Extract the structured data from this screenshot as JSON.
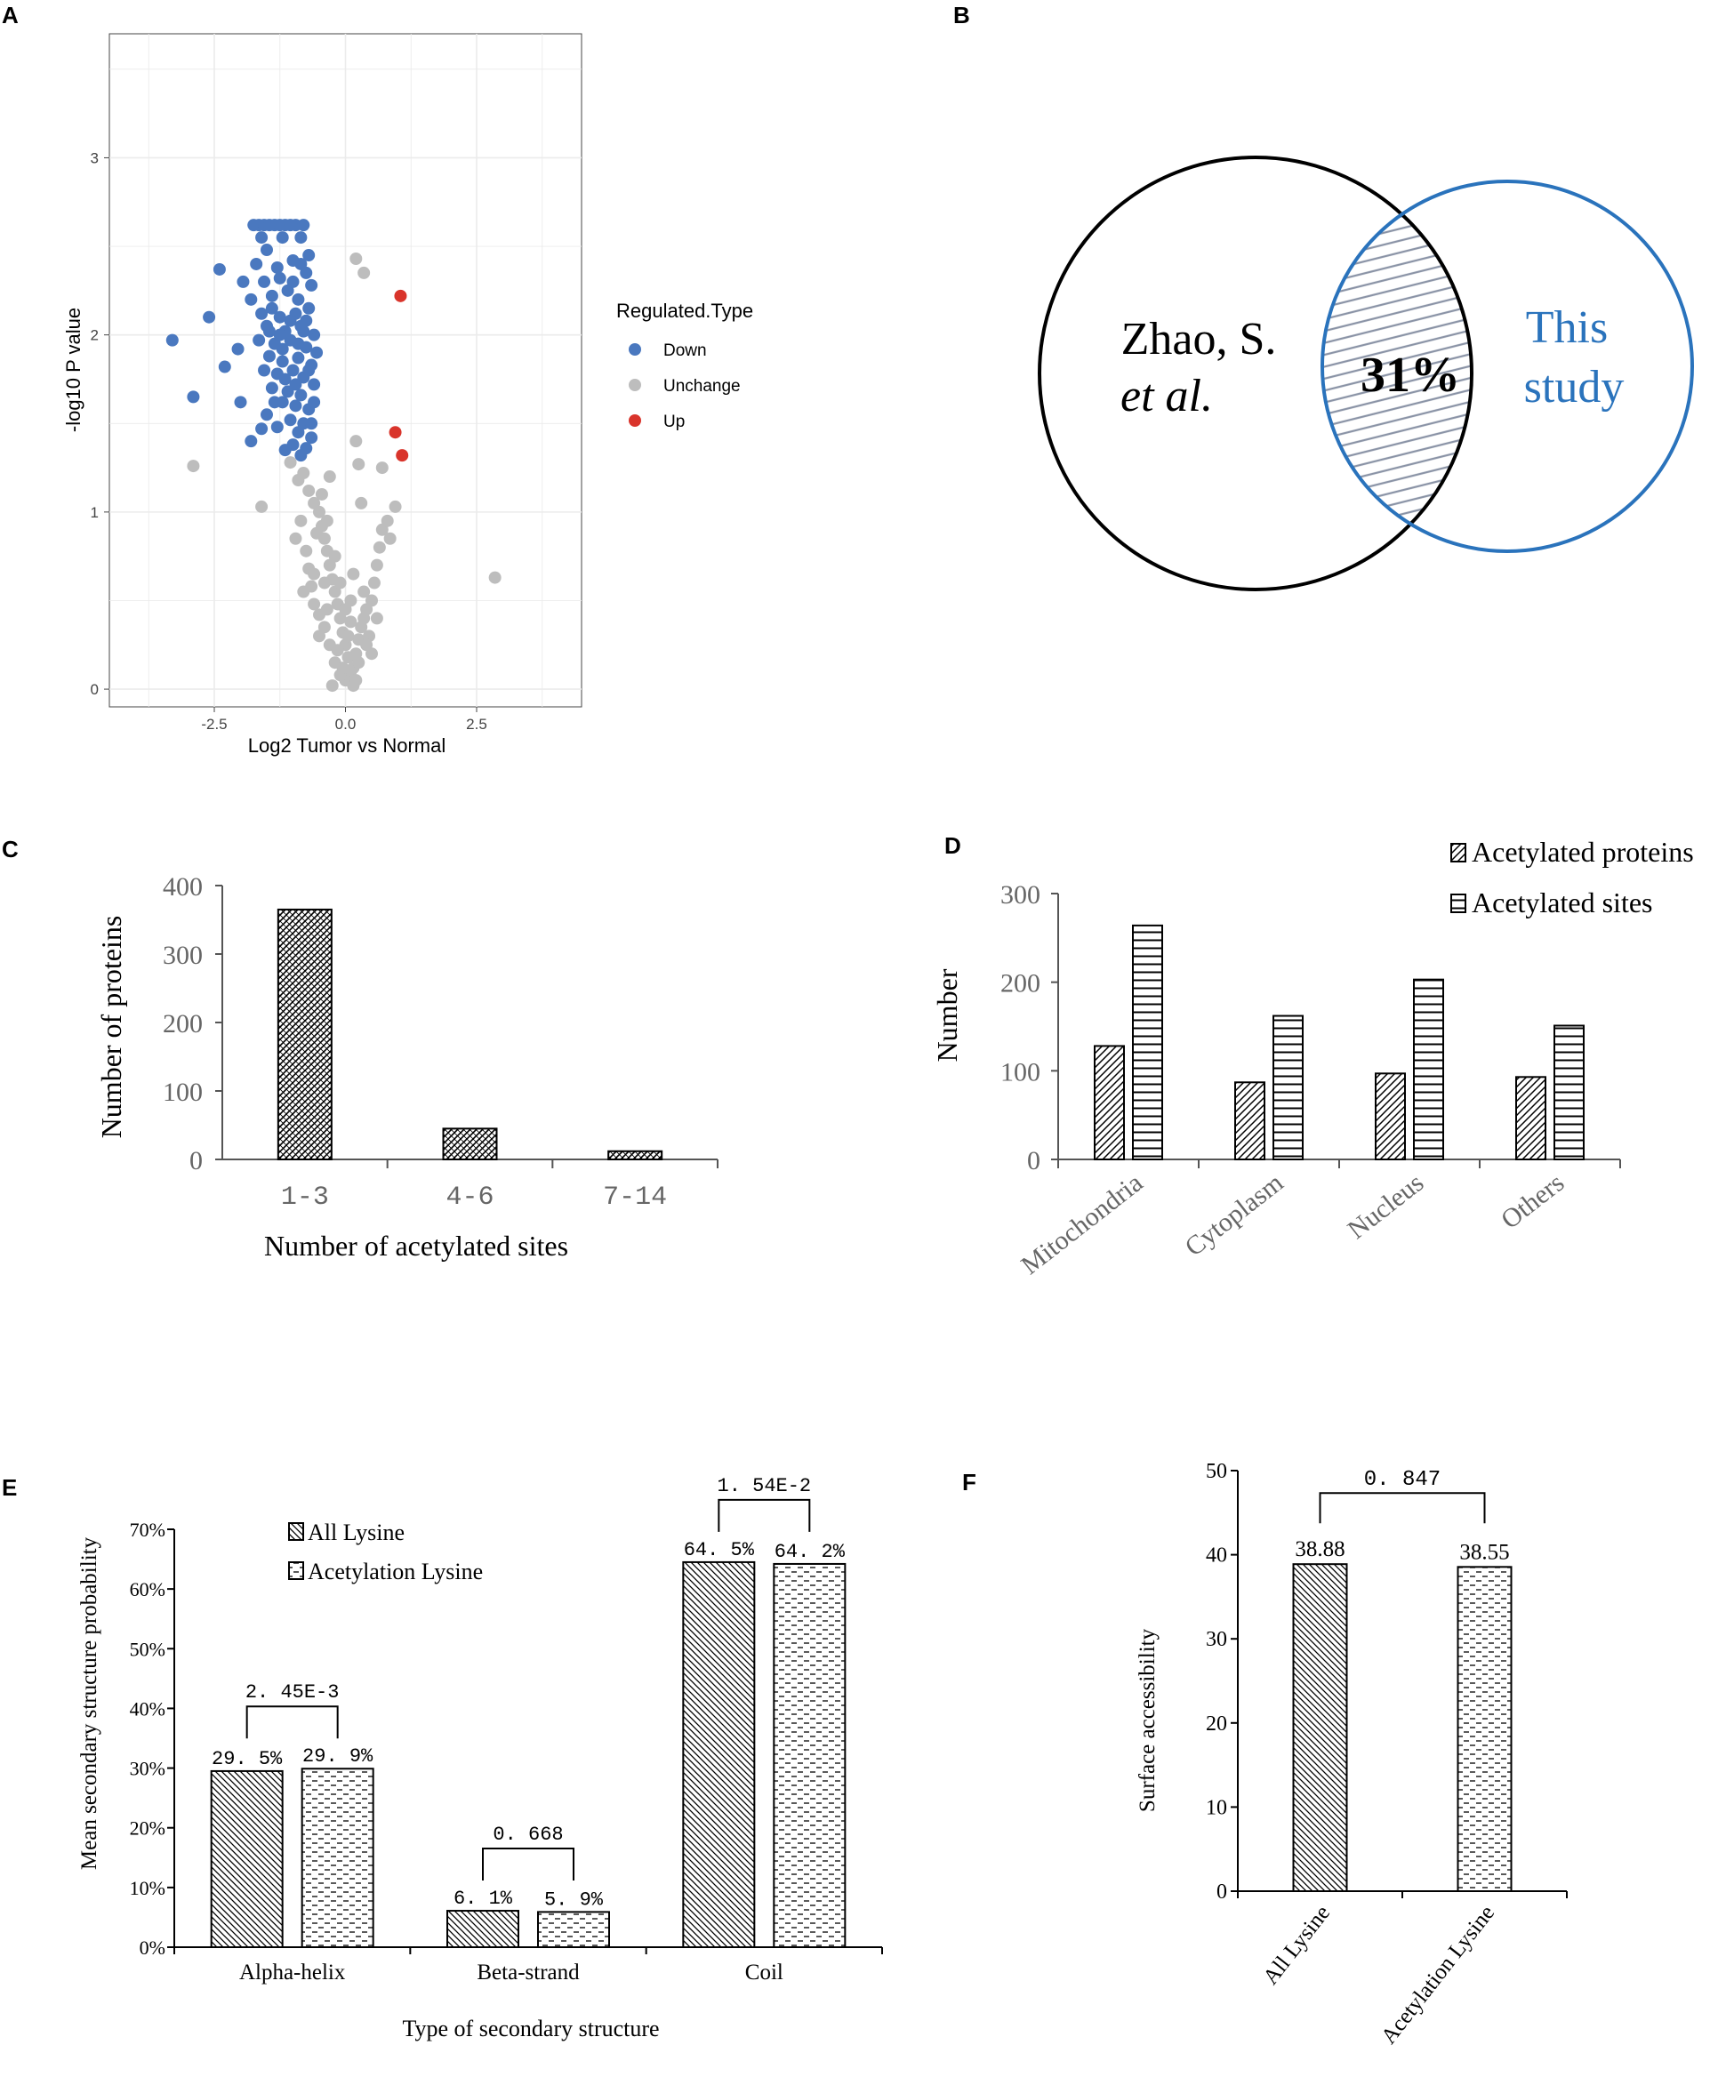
{
  "colors": {
    "down": "#4a78bf",
    "unchange": "#bdbdbd",
    "up": "#d9342b",
    "venn_blue": "#2a73bc",
    "hatch": "#8a93a6",
    "panel_bg": "#ffffff",
    "grid": "#ebebeb"
  },
  "chart_data": [
    {
      "panel": "A",
      "type": "scatter",
      "xlabel": "Log2 Tumor vs Normal",
      "ylabel": "-log10 P value",
      "xlim": [
        -4.5,
        4.5
      ],
      "ylim": [
        -0.1,
        3.7
      ],
      "x_ticks": [
        "-2.5",
        "0.0",
        "2.5"
      ],
      "x_tick_values": [
        -2.5,
        0.0,
        2.5
      ],
      "y_ticks": [
        "0",
        "1",
        "2",
        "3"
      ],
      "y_tick_values": [
        0,
        1,
        2,
        3
      ],
      "legend_title": "Regulated.Type",
      "legend": [
        "Down",
        "Unchange",
        "Up"
      ],
      "series": [
        {
          "name": "Down",
          "points": [
            [
              -3.3,
              1.97
            ],
            [
              -2.9,
              1.65
            ],
            [
              -2.6,
              2.1
            ],
            [
              -2.4,
              2.37
            ],
            [
              -2.3,
              1.82
            ],
            [
              -2.05,
              1.92
            ],
            [
              -1.95,
              2.3
            ],
            [
              -1.75,
              2.62
            ],
            [
              -1.65,
              2.62
            ],
            [
              -1.55,
              2.62
            ],
            [
              -1.45,
              2.62
            ],
            [
              -1.35,
              2.62
            ],
            [
              -1.25,
              2.62
            ],
            [
              -1.15,
              2.62
            ],
            [
              -1.05,
              2.62
            ],
            [
              -0.95,
              2.62
            ],
            [
              -0.8,
              2.62
            ],
            [
              -1.6,
              2.55
            ],
            [
              -1.2,
              2.55
            ],
            [
              -0.85,
              2.55
            ],
            [
              -1.5,
              2.48
            ],
            [
              -0.7,
              2.45
            ],
            [
              -1.7,
              2.4
            ],
            [
              -1.3,
              2.38
            ],
            [
              -1.0,
              2.42
            ],
            [
              -0.75,
              2.35
            ],
            [
              -1.55,
              2.3
            ],
            [
              -0.65,
              2.28
            ],
            [
              -1.8,
              2.2
            ],
            [
              -1.4,
              2.22
            ],
            [
              -1.1,
              2.25
            ],
            [
              -0.9,
              2.2
            ],
            [
              -1.6,
              2.12
            ],
            [
              -1.25,
              2.1
            ],
            [
              -0.95,
              2.12
            ],
            [
              -0.7,
              2.15
            ],
            [
              -1.5,
              2.05
            ],
            [
              -1.15,
              2.02
            ],
            [
              -0.85,
              2.05
            ],
            [
              -0.6,
              2.0
            ],
            [
              -1.65,
              1.97
            ],
            [
              -1.35,
              1.95
            ],
            [
              -1.05,
              1.97
            ],
            [
              -0.75,
              1.93
            ],
            [
              -0.55,
              1.9
            ],
            [
              -1.45,
              1.88
            ],
            [
              -1.2,
              1.85
            ],
            [
              -0.9,
              1.87
            ],
            [
              -0.65,
              1.83
            ],
            [
              -1.3,
              1.78
            ],
            [
              -1.0,
              1.8
            ],
            [
              -0.8,
              1.76
            ],
            [
              -0.6,
              1.72
            ],
            [
              -1.4,
              1.7
            ],
            [
              -1.1,
              1.68
            ],
            [
              -0.85,
              1.66
            ],
            [
              -1.2,
              1.62
            ],
            [
              -0.95,
              1.6
            ],
            [
              -0.7,
              1.58
            ],
            [
              -1.5,
              1.55
            ],
            [
              -1.05,
              1.52
            ],
            [
              -0.8,
              1.5
            ],
            [
              -1.3,
              1.48
            ],
            [
              -0.9,
              1.45
            ],
            [
              -0.65,
              1.42
            ],
            [
              -1.6,
              1.47
            ],
            [
              -1.0,
              1.38
            ],
            [
              -0.75,
              1.36
            ],
            [
              -1.15,
              1.35
            ],
            [
              -0.85,
              1.32
            ],
            [
              -1.8,
              1.4
            ],
            [
              -2.0,
              1.62
            ],
            [
              -1.25,
              2.0
            ],
            [
              -0.95,
              1.72
            ],
            [
              -1.4,
              2.15
            ],
            [
              -1.05,
              2.08
            ],
            [
              -0.8,
              2.02
            ],
            [
              -1.2,
              1.92
            ],
            [
              -0.7,
              1.8
            ],
            [
              -1.55,
              1.8
            ],
            [
              -1.35,
              1.62
            ],
            [
              -0.6,
              1.62
            ],
            [
              -1.15,
              1.75
            ],
            [
              -0.9,
              1.95
            ],
            [
              -0.75,
              2.08
            ],
            [
              -1.45,
              2.02
            ],
            [
              -1.0,
              2.3
            ],
            [
              -0.85,
              2.4
            ],
            [
              -1.25,
              2.32
            ],
            [
              -0.65,
              1.5
            ]
          ]
        },
        {
          "name": "Unchange",
          "points": [
            [
              -2.9,
              1.26
            ],
            [
              -1.6,
              1.03
            ],
            [
              -1.05,
              1.28
            ],
            [
              -0.9,
              1.18
            ],
            [
              -0.8,
              1.22
            ],
            [
              -0.7,
              1.12
            ],
            [
              -0.6,
              1.05
            ],
            [
              -0.5,
              1.0
            ],
            [
              -0.45,
              0.92
            ],
            [
              -0.4,
              0.85
            ],
            [
              -0.35,
              0.78
            ],
            [
              -0.3,
              0.7
            ],
            [
              -0.25,
              0.62
            ],
            [
              -0.2,
              0.55
            ],
            [
              -0.15,
              0.48
            ],
            [
              -0.1,
              0.4
            ],
            [
              -0.05,
              0.32
            ],
            [
              0.0,
              0.25
            ],
            [
              0.05,
              0.18
            ],
            [
              0.1,
              0.1
            ],
            [
              0.0,
              0.05
            ],
            [
              -0.1,
              0.08
            ],
            [
              0.15,
              0.12
            ],
            [
              -0.2,
              0.15
            ],
            [
              0.2,
              0.2
            ],
            [
              -0.3,
              0.25
            ],
            [
              0.25,
              0.28
            ],
            [
              -0.4,
              0.35
            ],
            [
              0.3,
              0.35
            ],
            [
              -0.5,
              0.42
            ],
            [
              0.35,
              0.4
            ],
            [
              -0.6,
              0.48
            ],
            [
              0.4,
              0.45
            ],
            [
              -0.65,
              0.58
            ],
            [
              0.5,
              0.5
            ],
            [
              -0.7,
              0.68
            ],
            [
              0.55,
              0.6
            ],
            [
              -0.75,
              0.78
            ],
            [
              0.6,
              0.7
            ],
            [
              -0.55,
              0.88
            ],
            [
              0.65,
              0.8
            ],
            [
              -0.45,
              1.1
            ],
            [
              0.7,
              0.9
            ],
            [
              0.8,
              0.95
            ],
            [
              -0.3,
              1.2
            ],
            [
              0.3,
              1.05
            ],
            [
              -0.85,
              0.95
            ],
            [
              -0.95,
              0.85
            ],
            [
              -0.6,
              0.65
            ],
            [
              0.45,
              0.3
            ],
            [
              -0.35,
              0.95
            ],
            [
              0.1,
              0.38
            ],
            [
              -0.15,
              0.22
            ],
            [
              0.25,
              0.15
            ],
            [
              0.05,
              0.3
            ],
            [
              -0.05,
              0.12
            ],
            [
              0.15,
              0.02
            ],
            [
              -0.25,
              0.02
            ],
            [
              0.2,
              0.05
            ],
            [
              0.1,
              0.5
            ],
            [
              0.5,
              0.2
            ],
            [
              0.2,
              2.43
            ],
            [
              0.35,
              2.35
            ],
            [
              0.2,
              1.4
            ],
            [
              0.25,
              1.27
            ],
            [
              0.7,
              1.25
            ],
            [
              0.95,
              1.03
            ],
            [
              0.85,
              0.85
            ],
            [
              -0.8,
              0.55
            ],
            [
              2.85,
              0.63
            ],
            [
              -0.4,
              0.6
            ],
            [
              0.35,
              0.55
            ],
            [
              -0.2,
              0.75
            ],
            [
              0.4,
              0.25
            ],
            [
              -0.35,
              0.45
            ],
            [
              0.6,
              0.4
            ],
            [
              -0.5,
              0.3
            ],
            [
              -0.1,
              0.6
            ],
            [
              0.0,
              0.45
            ],
            [
              0.15,
              0.65
            ]
          ]
        },
        {
          "name": "Up",
          "points": [
            [
              1.05,
              2.22
            ],
            [
              0.95,
              1.45
            ],
            [
              1.08,
              1.32
            ]
          ]
        }
      ]
    },
    {
      "panel": "B",
      "type": "venn",
      "sets": [
        "Zhao, S.",
        "et al.",
        "This",
        "study"
      ],
      "overlap_label": "31%"
    },
    {
      "panel": "C",
      "type": "bar",
      "categories": [
        "1-3",
        "4-6",
        "7-14"
      ],
      "values": [
        365,
        45,
        12
      ],
      "xlabel": "Number of acetylated sites",
      "ylabel": "Number of proteins",
      "ylim": [
        0,
        400
      ],
      "y_ticks": [
        "0",
        "100",
        "200",
        "300",
        "400"
      ]
    },
    {
      "panel": "D",
      "type": "bar",
      "categories": [
        "Mitochondria",
        "Cytoplasm",
        "Nucleus",
        "Others"
      ],
      "series": [
        {
          "name": "Acetylated proteins",
          "values": [
            128,
            87,
            97,
            93
          ]
        },
        {
          "name": "Acetylated sites",
          "values": [
            264,
            162,
            203,
            151
          ]
        }
      ],
      "ylabel": "Number",
      "ylim": [
        0,
        300
      ],
      "y_ticks": [
        "0",
        "100",
        "200",
        "300"
      ]
    },
    {
      "panel": "E",
      "type": "bar",
      "categories": [
        "Alpha-helix",
        "Beta-strand",
        "Coil"
      ],
      "series": [
        {
          "name": "All Lysine",
          "values": [
            29.5,
            6.1,
            64.5
          ],
          "labels": [
            "29. 5%",
            "6. 1%",
            "64. 5%"
          ]
        },
        {
          "name": "Acetylation Lysine",
          "values": [
            29.9,
            5.9,
            64.2
          ],
          "labels": [
            "29. 9%",
            "5. 9%",
            "64. 2%"
          ]
        }
      ],
      "pvalues": [
        "2. 45E-3",
        "0. 668",
        "1. 54E-2"
      ],
      "xlabel": "Type of secondary structure",
      "ylabel": "Mean secondary structure probability",
      "ylim": [
        0,
        70
      ],
      "y_ticks": [
        "0%",
        "10%",
        "20%",
        "30%",
        "40%",
        "50%",
        "60%",
        "70%"
      ]
    },
    {
      "panel": "F",
      "type": "bar",
      "categories": [
        "All Lysine",
        "Acetylation Lysine"
      ],
      "values": [
        38.88,
        38.55
      ],
      "labels": [
        "38.88",
        "38.55"
      ],
      "pvalue": "0. 847",
      "ylabel": "Surface accessibility",
      "ylim": [
        0,
        50
      ],
      "y_ticks": [
        "0",
        "10",
        "20",
        "30",
        "40",
        "50"
      ]
    }
  ],
  "panel_labels": [
    "A",
    "B",
    "C",
    "D",
    "E",
    "F"
  ]
}
